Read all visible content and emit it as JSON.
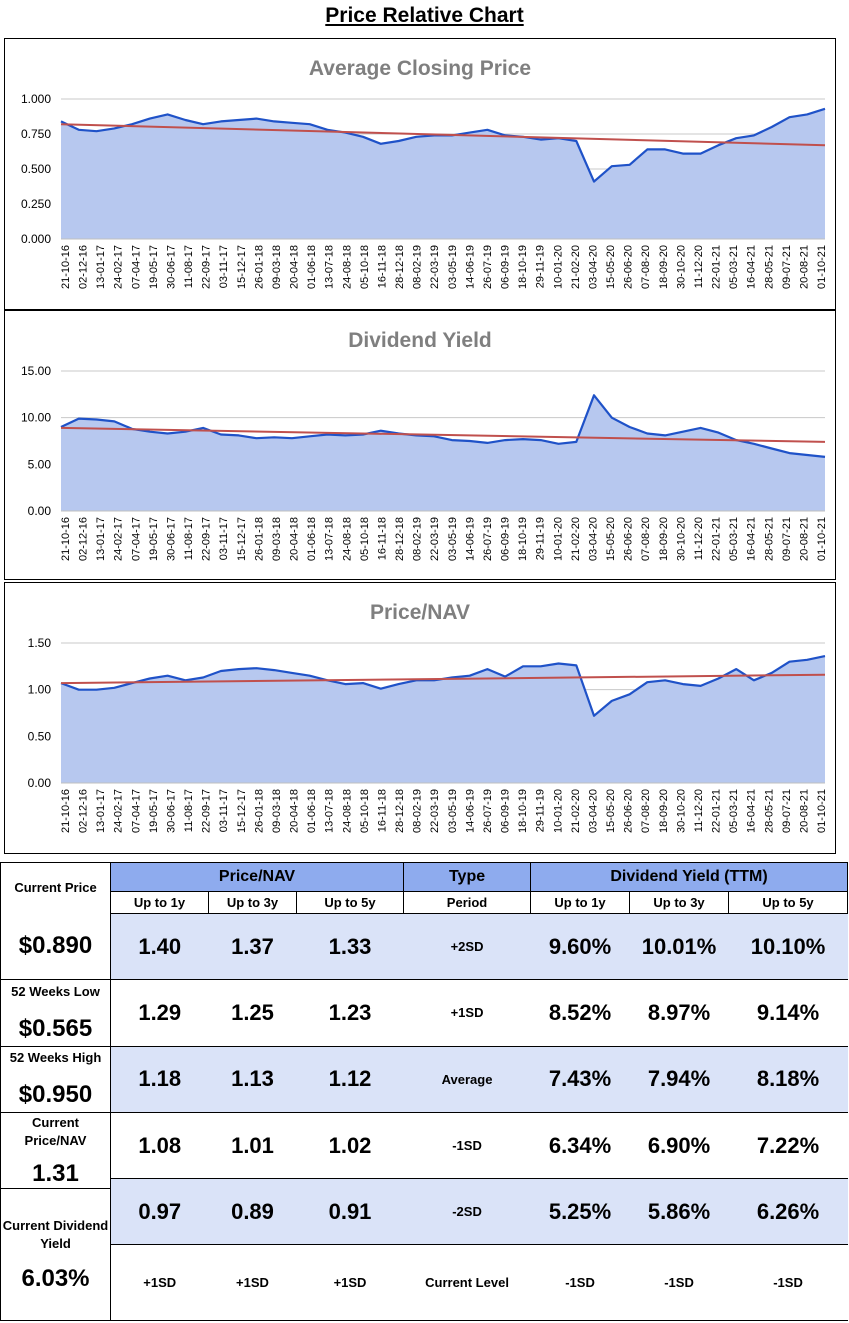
{
  "page": {
    "title": "Price Relative Chart"
  },
  "chart_data": [
    {
      "type": "area",
      "title": "Average Closing Price",
      "ylim": [
        0,
        1.0
      ],
      "yticks": [
        "0.000",
        "0.250",
        "0.500",
        "0.750",
        "1.000"
      ],
      "ytick_values": [
        0,
        0.25,
        0.5,
        0.75,
        1.0
      ],
      "x_labels": [
        "21-10-16",
        "02-12-16",
        "13-01-17",
        "24-02-17",
        "07-04-17",
        "19-05-17",
        "30-06-17",
        "11-08-17",
        "22-09-17",
        "03-11-17",
        "15-12-17",
        "26-01-18",
        "09-03-18",
        "20-04-18",
        "01-06-18",
        "13-07-18",
        "24-08-18",
        "05-10-18",
        "16-11-18",
        "28-12-18",
        "08-02-19",
        "22-03-19",
        "03-05-19",
        "14-06-19",
        "26-07-19",
        "06-09-19",
        "18-10-19",
        "29-11-19",
        "10-01-20",
        "21-02-20",
        "03-04-20",
        "15-05-20",
        "26-06-20",
        "07-08-20",
        "18-09-20",
        "30-10-20",
        "11-12-20",
        "22-01-21",
        "05-03-21",
        "16-04-21",
        "28-05-21",
        "09-07-21",
        "20-08-21",
        "01-10-21"
      ],
      "series": [
        {
          "name": "Average Closing Price",
          "values": [
            0.84,
            0.78,
            0.77,
            0.79,
            0.82,
            0.86,
            0.89,
            0.85,
            0.82,
            0.84,
            0.85,
            0.86,
            0.84,
            0.83,
            0.82,
            0.78,
            0.76,
            0.73,
            0.68,
            0.7,
            0.73,
            0.74,
            0.74,
            0.76,
            0.78,
            0.74,
            0.73,
            0.71,
            0.72,
            0.7,
            0.41,
            0.52,
            0.53,
            0.64,
            0.64,
            0.61,
            0.61,
            0.67,
            0.72,
            0.74,
            0.8,
            0.87,
            0.89,
            0.93
          ]
        },
        {
          "name": "Trend",
          "values": [
            0.82,
            0.67
          ]
        }
      ]
    },
    {
      "type": "area",
      "title": "Dividend Yield",
      "ylim": [
        0,
        15
      ],
      "yticks": [
        "0.00",
        "5.00",
        "10.00",
        "15.00"
      ],
      "ytick_values": [
        0,
        5,
        10,
        15
      ],
      "x_labels": [
        "21-10-16",
        "02-12-16",
        "13-01-17",
        "24-02-17",
        "07-04-17",
        "19-05-17",
        "30-06-17",
        "11-08-17",
        "22-09-17",
        "03-11-17",
        "15-12-17",
        "26-01-18",
        "09-03-18",
        "20-04-18",
        "01-06-18",
        "13-07-18",
        "24-08-18",
        "05-10-18",
        "16-11-18",
        "28-12-18",
        "08-02-19",
        "22-03-19",
        "03-05-19",
        "14-06-19",
        "26-07-19",
        "06-09-19",
        "18-10-19",
        "29-11-19",
        "10-01-20",
        "21-02-20",
        "03-04-20",
        "15-05-20",
        "26-06-20",
        "07-08-20",
        "18-09-20",
        "30-10-20",
        "11-12-20",
        "22-01-21",
        "05-03-21",
        "16-04-21",
        "28-05-21",
        "09-07-21",
        "20-08-21",
        "01-10-21"
      ],
      "series": [
        {
          "name": "Dividend Yield",
          "values": [
            9.0,
            9.9,
            9.8,
            9.6,
            8.8,
            8.5,
            8.3,
            8.5,
            8.9,
            8.2,
            8.1,
            7.8,
            7.9,
            7.8,
            8.0,
            8.2,
            8.1,
            8.2,
            8.6,
            8.3,
            8.1,
            8.0,
            7.6,
            7.5,
            7.3,
            7.6,
            7.7,
            7.6,
            7.2,
            7.4,
            12.4,
            10.0,
            9.0,
            8.3,
            8.1,
            8.5,
            8.9,
            8.4,
            7.6,
            7.2,
            6.7,
            6.2,
            6.0,
            5.8
          ]
        },
        {
          "name": "Trend",
          "values": [
            8.9,
            7.4
          ]
        }
      ]
    },
    {
      "type": "area",
      "title": "Price/NAV",
      "ylim": [
        0,
        1.5
      ],
      "yticks": [
        "0.00",
        "0.50",
        "1.00",
        "1.50"
      ],
      "ytick_values": [
        0,
        0.5,
        1.0,
        1.5
      ],
      "x_labels": [
        "21-10-16",
        "02-12-16",
        "13-01-17",
        "24-02-17",
        "07-04-17",
        "19-05-17",
        "30-06-17",
        "11-08-17",
        "22-09-17",
        "03-11-17",
        "15-12-17",
        "26-01-18",
        "09-03-18",
        "20-04-18",
        "01-06-18",
        "13-07-18",
        "24-08-18",
        "05-10-18",
        "16-11-18",
        "28-12-18",
        "08-02-19",
        "22-03-19",
        "03-05-19",
        "14-06-19",
        "26-07-19",
        "06-09-19",
        "18-10-19",
        "29-11-19",
        "10-01-20",
        "21-02-20",
        "03-04-20",
        "15-05-20",
        "26-06-20",
        "07-08-20",
        "18-09-20",
        "30-10-20",
        "11-12-20",
        "22-01-21",
        "05-03-21",
        "16-04-21",
        "28-05-21",
        "09-07-21",
        "20-08-21",
        "01-10-21"
      ],
      "series": [
        {
          "name": "Price/NAV",
          "values": [
            1.07,
            1.0,
            1.0,
            1.02,
            1.07,
            1.12,
            1.15,
            1.1,
            1.13,
            1.2,
            1.22,
            1.23,
            1.21,
            1.18,
            1.15,
            1.1,
            1.06,
            1.07,
            1.01,
            1.06,
            1.1,
            1.1,
            1.13,
            1.15,
            1.22,
            1.14,
            1.25,
            1.25,
            1.28,
            1.26,
            0.72,
            0.88,
            0.95,
            1.08,
            1.1,
            1.06,
            1.04,
            1.12,
            1.22,
            1.1,
            1.18,
            1.3,
            1.32,
            1.36
          ]
        },
        {
          "name": "Trend",
          "values": [
            1.07,
            1.16
          ]
        }
      ]
    }
  ],
  "colors": {
    "line": "#1f52c8",
    "fill": "#b7c8ef",
    "trend": "#c0504d",
    "grid": "#c8c8c8",
    "header": "#8eabee",
    "band": "#dae3f8"
  },
  "summary": {
    "current_price": {
      "label": "Current Price",
      "value": "$0.890"
    },
    "low_52w": {
      "label": "52 Weeks Low",
      "value": "$0.565"
    },
    "high_52w": {
      "label": "52 Weeks High",
      "value": "$0.950"
    },
    "current_pnav": {
      "label": "Current Price/NAV",
      "value": "1.31"
    },
    "current_dy": {
      "label": "Current Dividend Yield",
      "value": "6.03%"
    }
  },
  "table": {
    "pnav_header": "Price/NAV",
    "type_header": "Type",
    "dy_header": "Dividend Yield (TTM)",
    "periods": [
      "Up to 1y",
      "Up to 3y",
      "Up to 5y"
    ],
    "period_label": "Period",
    "rows": [
      {
        "type": "+2SD",
        "pnav": [
          "1.40",
          "1.37",
          "1.33"
        ],
        "dy": [
          "9.60%",
          "10.01%",
          "10.10%"
        ]
      },
      {
        "type": "+1SD",
        "pnav": [
          "1.29",
          "1.25",
          "1.23"
        ],
        "dy": [
          "8.52%",
          "8.97%",
          "9.14%"
        ]
      },
      {
        "type": "Average",
        "pnav": [
          "1.18",
          "1.13",
          "1.12"
        ],
        "dy": [
          "7.43%",
          "7.94%",
          "8.18%"
        ]
      },
      {
        "type": "-1SD",
        "pnav": [
          "1.08",
          "1.01",
          "1.02"
        ],
        "dy": [
          "6.34%",
          "6.90%",
          "7.22%"
        ]
      },
      {
        "type": "-2SD",
        "pnav": [
          "0.97",
          "0.89",
          "0.91"
        ],
        "dy": [
          "5.25%",
          "5.86%",
          "6.26%"
        ]
      }
    ],
    "current_level": {
      "label": "Current Level",
      "pnav": [
        "+1SD",
        "+1SD",
        "+1SD"
      ],
      "dy": [
        "-1SD",
        "-1SD",
        "-1SD"
      ]
    }
  }
}
